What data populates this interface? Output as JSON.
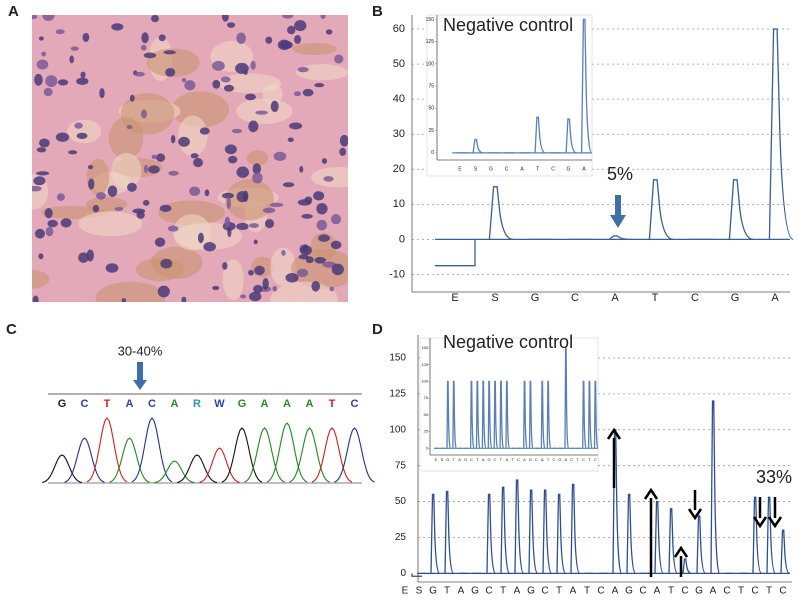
{
  "panels": {
    "a": "A",
    "b": "B",
    "c": "C",
    "d": "D"
  },
  "chart_data": [
    {
      "type": "pyrogram",
      "title": "Negative control",
      "annotation": "5%",
      "color": "#3a5f95",
      "grid": true,
      "categories": [
        "E",
        "S",
        "G",
        "C",
        "A",
        "T",
        "C",
        "G",
        "A"
      ],
      "values": [
        -7.5,
        15,
        0,
        0,
        1,
        17,
        0,
        17,
        60
      ],
      "ylim": [
        -15,
        64
      ],
      "yticks": [
        -10,
        0,
        10,
        20,
        30,
        40,
        50,
        60
      ]
    },
    {
      "type": "pyrogram",
      "color": "#5a7fb5",
      "grid": false,
      "categories": [
        "E",
        "S",
        "G",
        "C",
        "A",
        "T",
        "C",
        "G",
        "A"
      ],
      "values": [
        0,
        15,
        0,
        0,
        0,
        40,
        0,
        38,
        150
      ],
      "ylim": [
        -8,
        155
      ],
      "yticks": [
        0,
        25,
        50,
        75,
        100,
        125,
        150
      ]
    },
    {
      "type": "chromatogram",
      "annotation": "30-40%",
      "sequence": [
        "G",
        "C",
        "T",
        "A",
        "C",
        "A",
        "R",
        "W",
        "G",
        "A",
        "A",
        "A",
        "T",
        "C"
      ],
      "label_colors": [
        "#222222",
        "#2a3fb0",
        "#d02020",
        "#2a3fb0",
        "#2a3fb0",
        "#2a8a2a",
        "#2a9a9a",
        "#2a3fb0",
        "#2a8a2a",
        "#2a8a2a",
        "#2a8a2a",
        "#2a8a2a",
        "#d02020",
        "#2a3fb0"
      ],
      "values": [
        28,
        45,
        65,
        45,
        65,
        22,
        28,
        35,
        55,
        55,
        60,
        55,
        55,
        55
      ],
      "colors": [
        "#111111",
        "#1f2fa0",
        "#d02020",
        "#1f8a1f",
        "#1f2fa0",
        "#1f8a1f",
        "#111111",
        "#d02020",
        "#111111",
        "#1f8a1f",
        "#1f8a1f",
        "#1f8a1f",
        "#d02020",
        "#1f2fa0"
      ]
    },
    {
      "type": "pyrogram",
      "title": "Negative control",
      "annotation": "33%",
      "color": "#2f4f8f",
      "grid": true,
      "categories": [
        "E",
        "S",
        "G",
        "T",
        "A",
        "G",
        "C",
        "T",
        "A",
        "G",
        "C",
        "T",
        "A",
        "T",
        "C",
        "A",
        "G",
        "C",
        "A",
        "T",
        "C",
        "G",
        "A",
        "C",
        "T",
        "C",
        "T",
        "C"
      ],
      "values": [
        -2,
        0,
        55,
        57,
        0,
        0,
        55,
        60,
        65,
        58,
        58,
        55,
        62,
        0,
        0,
        100,
        55,
        0,
        50,
        45,
        10,
        40,
        120,
        0,
        0,
        53,
        53,
        30
      ],
      "ylim": [
        -6,
        166
      ],
      "yticks": [
        0,
        25,
        50,
        75,
        100,
        125,
        150
      ]
    },
    {
      "type": "pyrogram",
      "color": "#5a7fb5",
      "grid": false,
      "categories": [
        "E",
        "S",
        "G",
        "T",
        "A",
        "G",
        "C",
        "T",
        "A",
        "G",
        "C",
        "T",
        "A",
        "T",
        "C",
        "A",
        "G",
        "C",
        "A",
        "T",
        "C",
        "G",
        "A",
        "C",
        "T",
        "C",
        "T",
        "C"
      ],
      "values": [
        0,
        0,
        100,
        100,
        0,
        0,
        100,
        100,
        100,
        100,
        100,
        100,
        100,
        0,
        0,
        100,
        100,
        0,
        100,
        100,
        0,
        0,
        150,
        0,
        0,
        100,
        100,
        100
      ],
      "ylim": [
        -10,
        165
      ],
      "yticks": [
        0,
        25,
        50,
        75,
        100,
        125,
        150
      ]
    }
  ]
}
